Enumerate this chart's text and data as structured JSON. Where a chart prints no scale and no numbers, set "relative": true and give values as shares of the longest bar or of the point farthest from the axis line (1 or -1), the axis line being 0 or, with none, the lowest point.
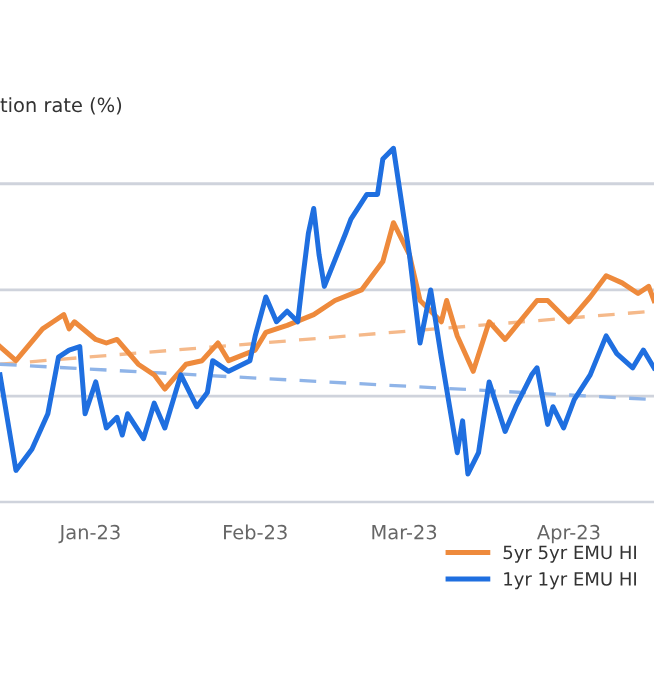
{
  "chart_data": {
    "type": "line",
    "title": "tion rate (%)",
    "relative": true,
    "grid": "y",
    "legend": "bottom right",
    "line_style": "solid",
    "marker": "none",
    "xlim": [
      "2022-12-15",
      "2023-04-17"
    ],
    "xticks": [
      {
        "value": "2023-01-01",
        "label": "Jan-23"
      },
      {
        "value": "2023-02-01",
        "label": "Feb-23"
      },
      {
        "value": "2023-03-01",
        "label": "Mar-23"
      },
      {
        "value": "2023-04-01",
        "label": "Apr-23"
      }
    ],
    "series": [
      {
        "name": "5yr 5yr EMU HI",
        "color": "#ee8a3c",
        "x": [
          "2022-12-15",
          "2022-12-18",
          "2022-12-23",
          "2022-12-25",
          "2022-12-27",
          "2022-12-28",
          "2022-12-29",
          "2023-01-02",
          "2023-01-04",
          "2023-01-06",
          "2023-01-10",
          "2023-01-13",
          "2023-01-15",
          "2023-01-19",
          "2023-01-22",
          "2023-01-25",
          "2023-01-27",
          "2023-02-01",
          "2023-02-03",
          "2023-02-07",
          "2023-02-12",
          "2023-02-16",
          "2023-02-21",
          "2023-02-25",
          "2023-02-27",
          "2023-03-02",
          "2023-03-04",
          "2023-03-08",
          "2023-03-09",
          "2023-03-11",
          "2023-03-14",
          "2023-03-17",
          "2023-03-20",
          "2023-03-26",
          "2023-03-28",
          "2023-04-01",
          "2023-04-05",
          "2023-04-08",
          "2023-04-11",
          "2023-04-14",
          "2023-04-16",
          "2023-04-17"
        ],
        "values": [
          0.44,
          0.4,
          0.49,
          0.51,
          0.53,
          0.49,
          0.51,
          0.46,
          0.45,
          0.46,
          0.39,
          0.36,
          0.32,
          0.39,
          0.4,
          0.45,
          0.4,
          0.43,
          0.48,
          0.5,
          0.53,
          0.57,
          0.6,
          0.68,
          0.79,
          0.7,
          0.57,
          0.51,
          0.57,
          0.47,
          0.37,
          0.51,
          0.46,
          0.57,
          0.57,
          0.51,
          0.58,
          0.64,
          0.62,
          0.59,
          0.61,
          0.57
        ]
      },
      {
        "name": "1yr 1yr EMU HI",
        "color": "#1f6fe0",
        "x": [
          "2022-12-15",
          "2022-12-18",
          "2022-12-21",
          "2022-12-24",
          "2022-12-26",
          "2022-12-28",
          "2022-12-30",
          "2022-12-31",
          "2023-01-02",
          "2023-01-04",
          "2023-01-06",
          "2023-01-07",
          "2023-01-08",
          "2023-01-11",
          "2023-01-13",
          "2023-01-15",
          "2023-01-18",
          "2023-01-21",
          "2023-01-23",
          "2023-01-24",
          "2023-01-27",
          "2023-01-31",
          "2023-02-01",
          "2023-02-03",
          "2023-02-05",
          "2023-02-07",
          "2023-02-09",
          "2023-02-10",
          "2023-02-11",
          "2023-02-12",
          "2023-02-13",
          "2023-02-14",
          "2023-02-18",
          "2023-02-19",
          "2023-02-22",
          "2023-02-24",
          "2023-02-25",
          "2023-02-27",
          "2023-03-02",
          "2023-03-04",
          "2023-03-06",
          "2023-03-08",
          "2023-03-11",
          "2023-03-12",
          "2023-03-13",
          "2023-03-15",
          "2023-03-17",
          "2023-03-20",
          "2023-03-22",
          "2023-03-25",
          "2023-03-26",
          "2023-03-28",
          "2023-03-29",
          "2023-03-31",
          "2023-04-02",
          "2023-04-05",
          "2023-04-08",
          "2023-04-10",
          "2023-04-13",
          "2023-04-15",
          "2023-04-17"
        ],
        "values": [
          0.36,
          0.09,
          0.15,
          0.25,
          0.41,
          0.43,
          0.44,
          0.25,
          0.34,
          0.21,
          0.24,
          0.19,
          0.25,
          0.18,
          0.28,
          0.21,
          0.36,
          0.27,
          0.31,
          0.4,
          0.37,
          0.4,
          0.47,
          0.58,
          0.51,
          0.54,
          0.51,
          0.64,
          0.76,
          0.83,
          0.7,
          0.61,
          0.76,
          0.8,
          0.87,
          0.87,
          0.97,
          1.0,
          0.7,
          0.45,
          0.6,
          0.41,
          0.14,
          0.23,
          0.08,
          0.14,
          0.34,
          0.2,
          0.27,
          0.36,
          0.38,
          0.22,
          0.27,
          0.21,
          0.29,
          0.36,
          0.47,
          0.42,
          0.38,
          0.43,
          0.38
        ]
      },
      {
        "color": "#f5b98a",
        "line_style": "dashed",
        "x": [
          "2022-12-15",
          "2023-04-17"
        ],
        "values": [
          0.39,
          0.54
        ]
      },
      {
        "color": "#8fb4e8",
        "line_style": "dashed",
        "x": [
          "2022-12-15",
          "2023-04-17"
        ],
        "values": [
          0.39,
          0.29
        ]
      }
    ]
  }
}
